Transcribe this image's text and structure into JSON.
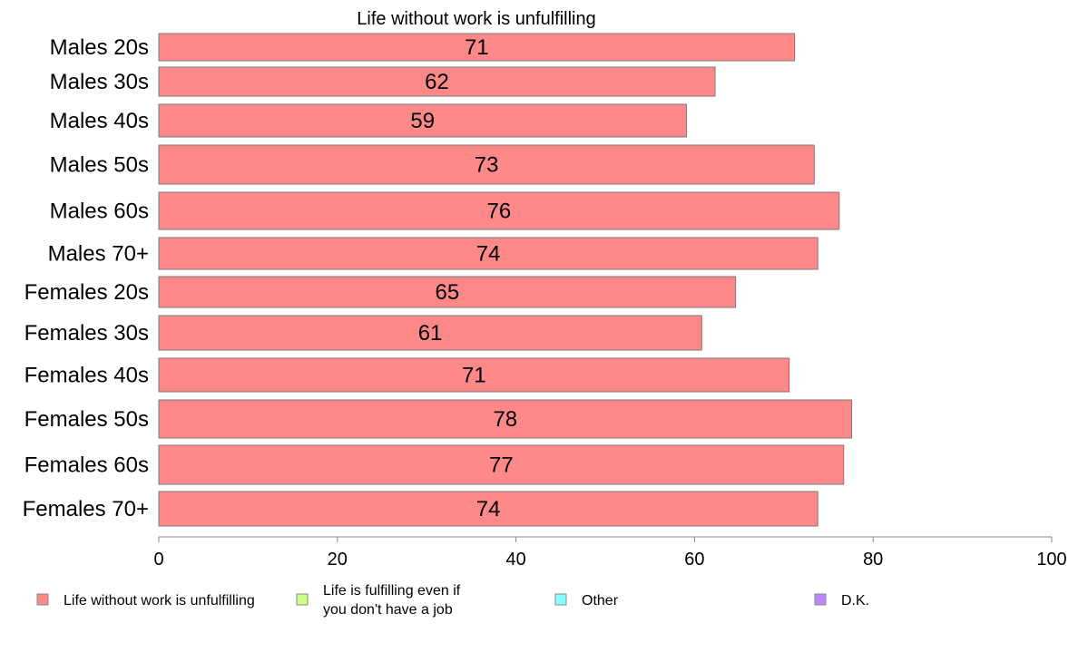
{
  "chart_data": {
    "type": "bar",
    "orientation": "horizontal",
    "title": "Life without work is unfulfilling",
    "xlabel": "",
    "ylabel": "",
    "xlim": [
      0,
      100
    ],
    "x_ticks": [
      "0",
      "20",
      "40",
      "60",
      "80",
      "100"
    ],
    "grid": false,
    "legend_position": "bottom",
    "categories": [
      "Males 20s",
      "Males 30s",
      "Males 40s",
      "Males 50s",
      "Males 60s",
      "Males 70+",
      "Females 20s",
      "Females 30s",
      "Females 40s",
      "Females 50s",
      "Females 60s",
      "Females 70+"
    ],
    "series": [
      {
        "name": "Life without work is unfulfilling",
        "color": "#ff8888",
        "values": [
          71.2,
          62.3,
          59.1,
          73.4,
          76.2,
          73.8,
          64.6,
          60.8,
          70.6,
          77.6,
          76.7,
          73.8
        ],
        "labels": [
          "71",
          "62",
          "59",
          "73",
          "76",
          "74",
          "65",
          "61",
          "71",
          "78",
          "77",
          "74"
        ]
      }
    ],
    "legend": [
      {
        "label": "Life without work is unfulfilling",
        "color": "#ff8888"
      },
      {
        "label": "Life is fulfilling even if you don't have a job",
        "label_lines": [
          "Life is fulfilling even if",
          "you don't have a job"
        ],
        "color": "#ccff88"
      },
      {
        "label": "Other",
        "color": "#88ffff"
      },
      {
        "label": "D.K.",
        "color": "#bb88ff"
      }
    ]
  }
}
